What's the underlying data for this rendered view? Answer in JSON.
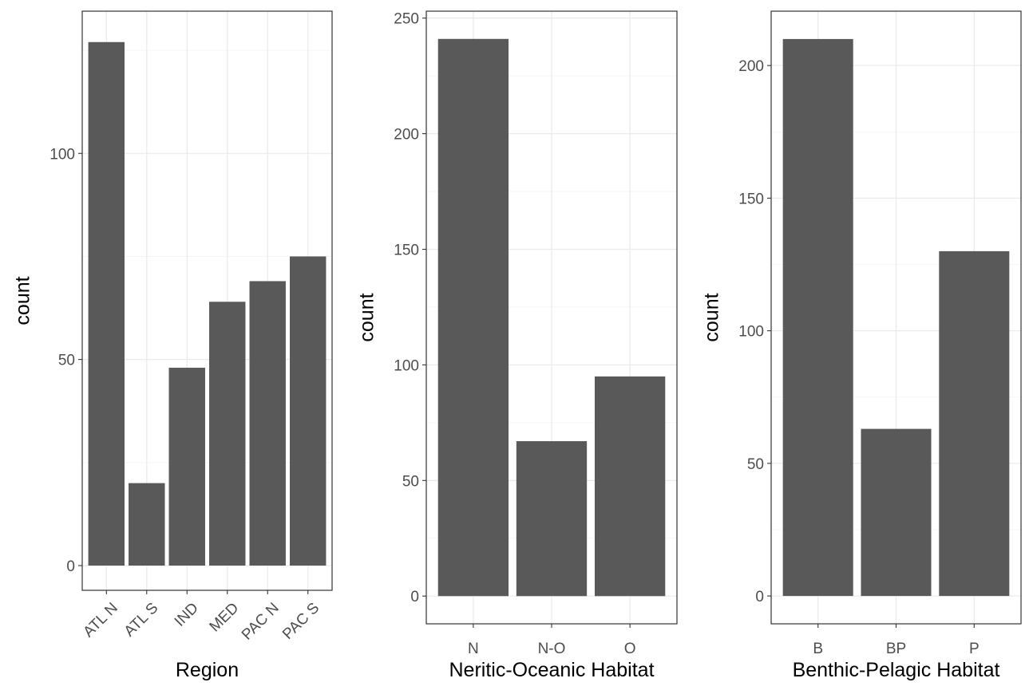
{
  "chart_data": [
    {
      "type": "bar",
      "categories": [
        "ATL N",
        "ATL S",
        "IND",
        "MED",
        "PAC N",
        "PAC S"
      ],
      "values": [
        127,
        20,
        48,
        64,
        69,
        75
      ],
      "xlabel": "Region",
      "ylabel": "count",
      "ylim": [
        -6,
        134.5
      ],
      "y_ticks": [
        0,
        50,
        100
      ],
      "x_tick_rotation": 45,
      "grid": true,
      "bar_color": "#595959"
    },
    {
      "type": "bar",
      "categories": [
        "N",
        "N-O",
        "O"
      ],
      "values": [
        241,
        67,
        95
      ],
      "xlabel": "Neritic-Oceanic Habitat",
      "ylabel": "count",
      "ylim": [
        -12,
        253
      ],
      "y_ticks": [
        0,
        50,
        100,
        150,
        200,
        250
      ],
      "x_tick_rotation": 0,
      "grid": true,
      "bar_color": "#595959"
    },
    {
      "type": "bar",
      "categories": [
        "B",
        "BP",
        "P"
      ],
      "values": [
        210,
        63,
        130
      ],
      "xlabel": "Benthic-Pelagic Habitat",
      "ylabel": "count",
      "ylim": [
        -10.5,
        220.5
      ],
      "y_ticks": [
        0,
        50,
        100,
        150,
        200
      ],
      "x_tick_rotation": 0,
      "grid": true,
      "bar_color": "#595959"
    }
  ]
}
